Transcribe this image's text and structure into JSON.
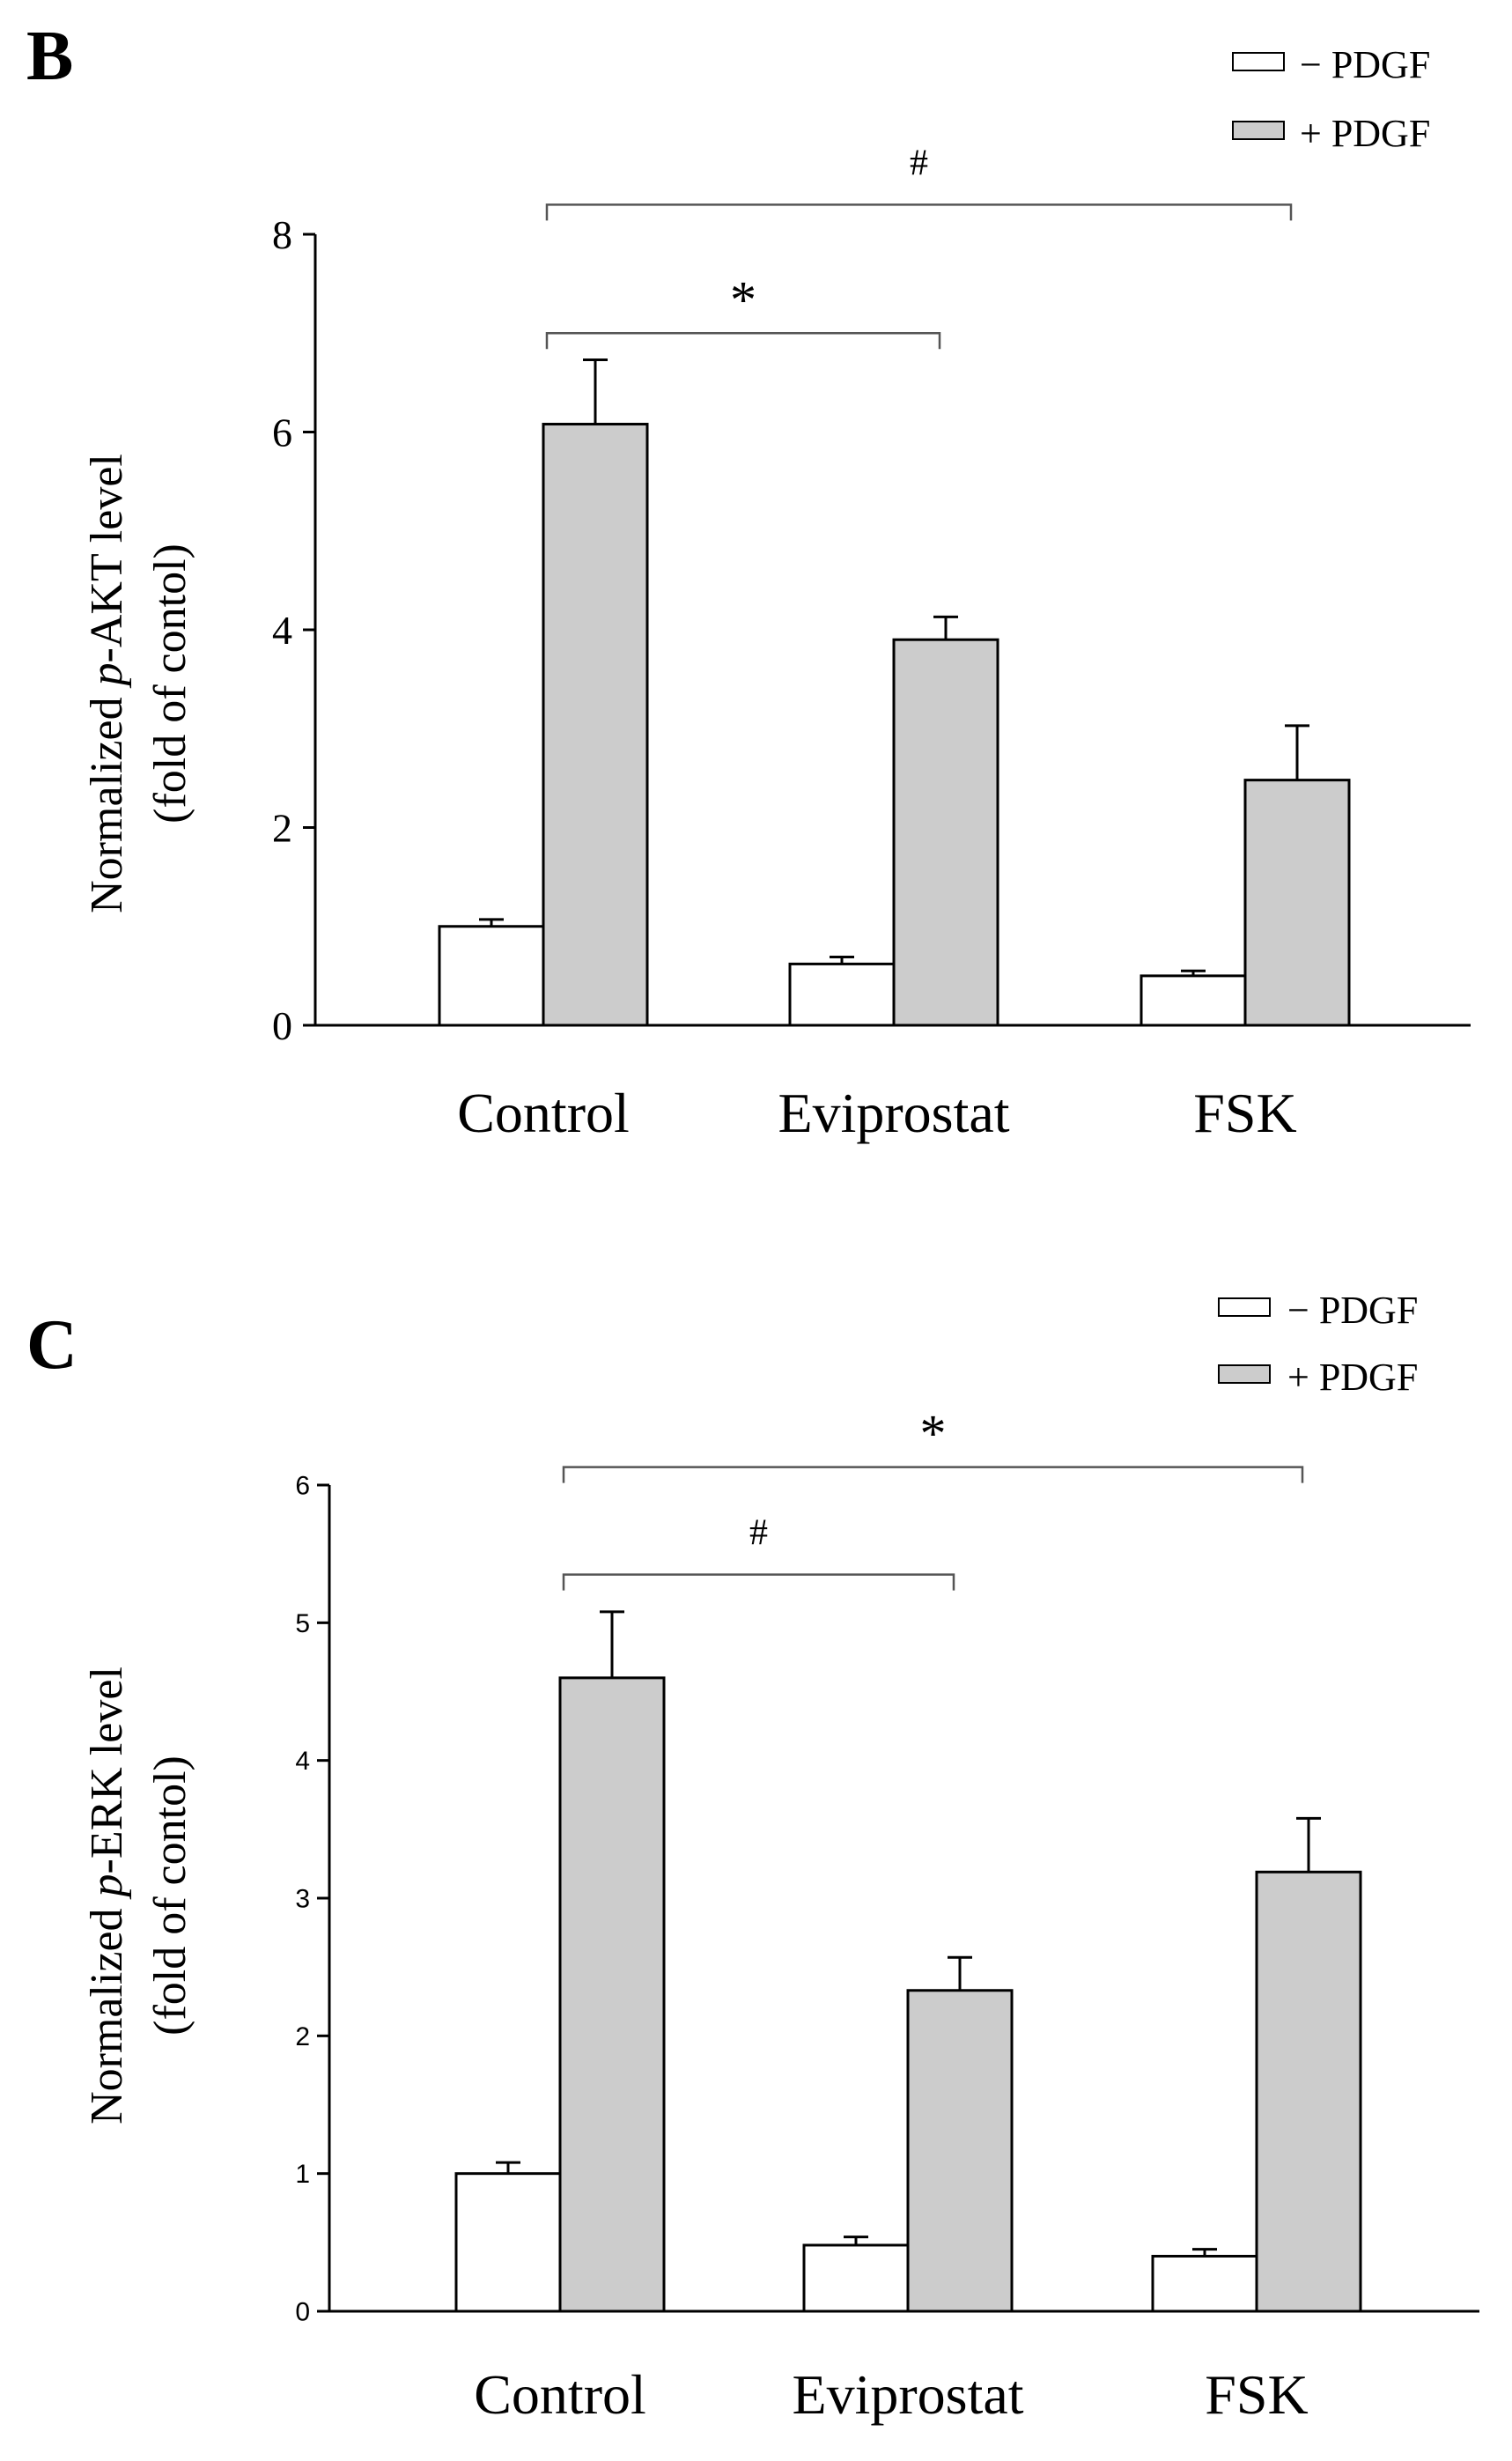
{
  "chart_data": [
    {
      "type": "bar",
      "panel_label": "B",
      "ylabel_line1_prefix": "Normalized ",
      "ylabel_line1_italic": "p",
      "ylabel_line1_suffix": "-AKT level",
      "ylabel_line2": "(fold of contol)",
      "categories": [
        "Control",
        "Eviprostat",
        "FSK"
      ],
      "ylim": [
        0,
        8
      ],
      "yticks": [
        0,
        2,
        4,
        6,
        8
      ],
      "series": [
        {
          "name": "− PDGF",
          "color": "#ffffff",
          "values": [
            1.0,
            0.62,
            0.5
          ],
          "errors": [
            0.07,
            0.07,
            0.05
          ]
        },
        {
          "name": "+ PDGF",
          "color": "#cccccc",
          "values": [
            6.08,
            3.9,
            2.48
          ],
          "errors": [
            0.65,
            0.23,
            0.55
          ]
        }
      ],
      "legend": {
        "position": "top-right",
        "entries": [
          "− PDGF",
          "+ PDGF"
        ]
      },
      "annotations": [
        {
          "symbol": "*",
          "from": "Control",
          "to": "Eviprostat",
          "level": 7.0
        },
        {
          "symbol": "#",
          "from": "Control",
          "to": "FSK",
          "level": 8.3
        }
      ]
    },
    {
      "type": "bar",
      "panel_label": "C",
      "ylabel_line1_prefix": "Normalized ",
      "ylabel_line1_italic": "p",
      "ylabel_line1_suffix": "-ERK level",
      "ylabel_line2": "(fold of contol)",
      "categories": [
        "Control",
        "Eviprostat",
        "FSK"
      ],
      "ylim": [
        0,
        6
      ],
      "yticks": [
        0,
        1,
        2,
        3,
        4,
        5,
        6
      ],
      "series": [
        {
          "name": "− PDGF",
          "color": "#ffffff",
          "values": [
            1.0,
            0.48,
            0.4
          ],
          "errors": [
            0.08,
            0.06,
            0.05
          ]
        },
        {
          "name": "+ PDGF",
          "color": "#cccccc",
          "values": [
            4.6,
            2.33,
            3.19
          ],
          "errors": [
            0.48,
            0.24,
            0.39
          ]
        }
      ],
      "legend": {
        "position": "top-right",
        "entries": [
          "− PDGF",
          "+ PDGF"
        ]
      },
      "annotations": [
        {
          "symbol": "#",
          "from": "Control",
          "to": "Eviprostat",
          "level": 5.35
        },
        {
          "symbol": "*",
          "from": "Control",
          "to": "FSK",
          "level": 6.13
        }
      ]
    }
  ]
}
